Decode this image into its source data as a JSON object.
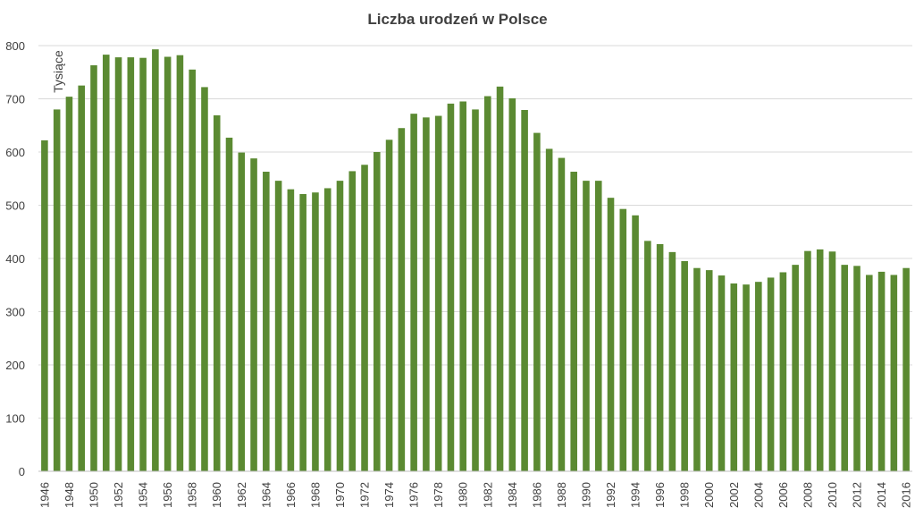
{
  "chart_data": {
    "type": "bar",
    "title": "Liczba urodzeń w Polsce",
    "xlabel": "",
    "ylabel": "Tysiące",
    "ylim": [
      0,
      800
    ],
    "yticks": [
      0,
      100,
      200,
      300,
      400,
      500,
      600,
      700,
      800
    ],
    "grid": true,
    "legend": "none",
    "bar_color": "#5b8a32",
    "categories": [
      1946,
      1947,
      1948,
      1949,
      1950,
      1951,
      1952,
      1953,
      1954,
      1955,
      1956,
      1957,
      1958,
      1959,
      1960,
      1961,
      1962,
      1963,
      1964,
      1965,
      1966,
      1967,
      1968,
      1969,
      1970,
      1971,
      1972,
      1973,
      1974,
      1975,
      1976,
      1977,
      1978,
      1979,
      1980,
      1981,
      1982,
      1983,
      1984,
      1985,
      1986,
      1987,
      1988,
      1989,
      1990,
      1991,
      1992,
      1993,
      1994,
      1995,
      1996,
      1997,
      1998,
      1999,
      2000,
      2001,
      2002,
      2003,
      2004,
      2005,
      2006,
      2007,
      2008,
      2009,
      2010,
      2011,
      2012,
      2013,
      2014,
      2015,
      2016
    ],
    "xtick_labels": [
      "1946",
      "1948",
      "1950",
      "1952",
      "1954",
      "1956",
      "1958",
      "1960",
      "1962",
      "1964",
      "1966",
      "1968",
      "1970",
      "1972",
      "1974",
      "1976",
      "1978",
      "1980",
      "1982",
      "1984",
      "1986",
      "1988",
      "1990",
      "1992",
      "1994",
      "1996",
      "1998",
      "2000",
      "2002",
      "2004",
      "2006",
      "2008",
      "2010",
      "2012",
      "2014",
      "2016"
    ],
    "values": [
      622,
      680,
      704,
      725,
      763,
      783,
      778,
      778,
      777,
      793,
      779,
      782,
      755,
      722,
      669,
      627,
      599,
      588,
      563,
      546,
      530,
      521,
      524,
      532,
      546,
      564,
      576,
      600,
      623,
      645,
      672,
      665,
      668,
      691,
      695,
      680,
      705,
      723,
      701,
      679,
      636,
      606,
      589,
      563,
      546,
      546,
      514,
      493,
      481,
      433,
      427,
      412,
      395,
      382,
      378,
      368,
      353,
      351,
      356,
      364,
      374,
      388,
      414,
      417,
      413,
      388,
      386,
      369,
      375,
      369,
      382
    ]
  }
}
